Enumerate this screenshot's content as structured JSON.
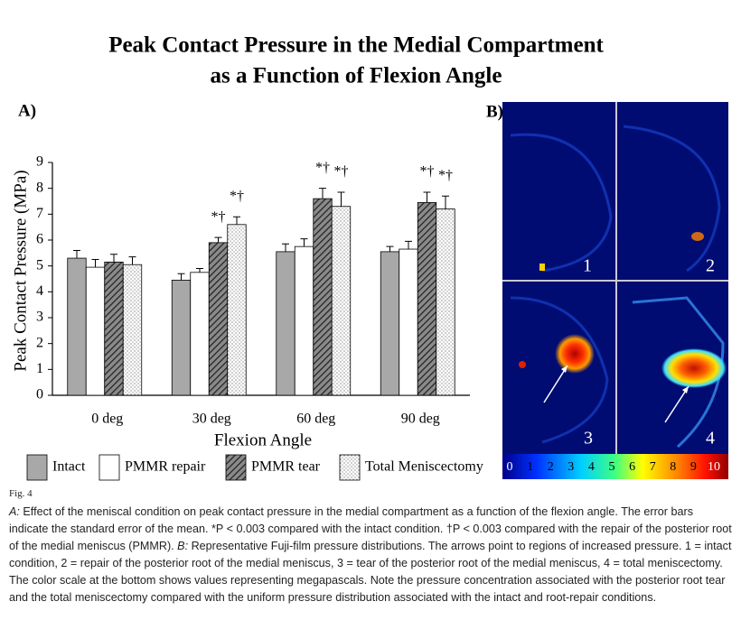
{
  "chart_data": {
    "type": "bar",
    "panel_label": "A)",
    "title": [
      "Peak Contact Pressure in the Medial Compartment",
      "as a Function of Flexion Angle"
    ],
    "x_label": "Flexion Angle",
    "y_label": "Peak Contact Pressure (MPa)",
    "categories": [
      "0 deg",
      "30 deg",
      "60 deg",
      "90 deg"
    ],
    "series": [
      {
        "name": "Intact",
        "color": "#a8a8a8",
        "pattern": "solid",
        "values": [
          5.3,
          4.45,
          5.55,
          5.55
        ],
        "errors": [
          0.3,
          0.25,
          0.3,
          0.2
        ]
      },
      {
        "name": "PMMR repair",
        "color": "#ffffff",
        "pattern": "solid",
        "values": [
          4.95,
          4.75,
          5.75,
          5.65
        ],
        "errors": [
          0.3,
          0.15,
          0.3,
          0.3
        ]
      },
      {
        "name": "PMMR tear",
        "color": "#555555",
        "pattern": "hatch",
        "values": [
          5.15,
          5.9,
          7.6,
          7.45
        ],
        "errors": [
          0.3,
          0.2,
          0.4,
          0.4
        ],
        "labels": [
          null,
          "*†",
          "*†",
          "*†"
        ]
      },
      {
        "name": "Total Meniscectomy",
        "color": "#ffffff",
        "pattern": "dots",
        "values": [
          5.05,
          6.6,
          7.3,
          7.2
        ],
        "errors": [
          0.3,
          0.3,
          0.55,
          0.5
        ],
        "labels": [
          null,
          "*†",
          "*†",
          "*†"
        ]
      }
    ],
    "ylim": [
      0,
      9
    ],
    "yticks": [
      0,
      1,
      2,
      3,
      4,
      5,
      6,
      7,
      8,
      9
    ],
    "grid": false
  },
  "panel_b": {
    "label": "B)",
    "images": [
      "1",
      "2",
      "3",
      "4"
    ],
    "scale_labels": [
      "0",
      "1",
      "2",
      "3",
      "4",
      "5",
      "6",
      "7",
      "8",
      "9",
      "10"
    ]
  },
  "figure": {
    "label": "Fig. 4",
    "caption_a_label": "A:",
    "caption_a": " Effect of the meniscal condition on peak contact pressure in the medial compartment as a function of the flexion angle. The error bars indicate the standard error of the mean. *P < 0.003 compared with the intact condition. †P < 0.003 compared with the repair of the posterior root of the medial meniscus (PMMR). ",
    "caption_b_label": "B:",
    "caption_b": " Representative Fuji-film pressure distributions. The arrows point to regions of increased pressure. 1 = intact condition, 2 = repair of the posterior root of the medial meniscus, 3 = tear of the posterior root of the medial meniscus, 4 = total meniscectomy. The color scale at the bottom shows values representing megapascals. Note the pressure concentration associated with the posterior root tear and the total meniscectomy compared with the uniform pressure distribution associated with the intact and root-repair conditions."
  }
}
